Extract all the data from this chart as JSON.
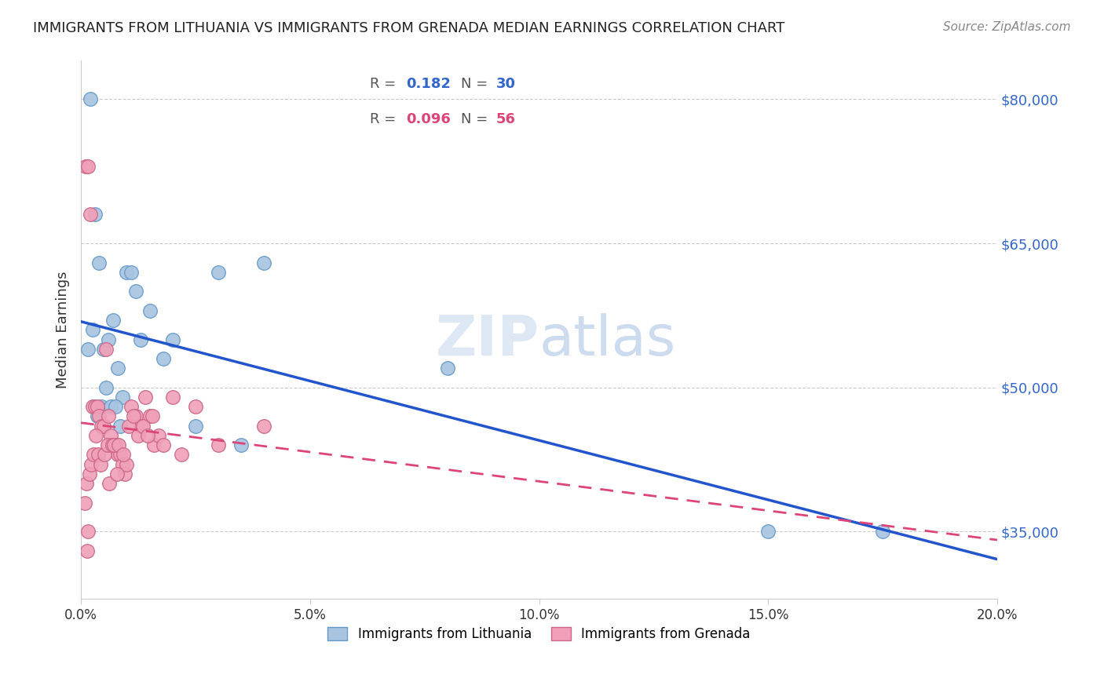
{
  "title": "IMMIGRANTS FROM LITHUANIA VS IMMIGRANTS FROM GRENADA MEDIAN EARNINGS CORRELATION CHART",
  "source": "Source: ZipAtlas.com",
  "ylabel": "Median Earnings",
  "xlabel_ticks": [
    "0.0%",
    "5.0%",
    "10.0%",
    "15.0%",
    "20.0%"
  ],
  "xlabel_vals": [
    0.0,
    5.0,
    10.0,
    15.0,
    20.0
  ],
  "ytick_labels": [
    "$35,000",
    "$50,000",
    "$65,000",
    "$80,000"
  ],
  "ytick_vals": [
    35000,
    50000,
    65000,
    80000
  ],
  "xmin": 0.0,
  "xmax": 20.0,
  "ymin": 28000,
  "ymax": 84000,
  "legend_R_lithuania": "0.182",
  "legend_N_lithuania": "30",
  "legend_R_grenada": "0.096",
  "legend_N_grenada": "56",
  "lithuania_color": "#a8c4e0",
  "grenada_color": "#f0a0b8",
  "lithuania_edge": "#6699cc",
  "grenada_edge": "#cc6688",
  "trend_lithuania_color": "#2255cc",
  "trend_grenada_color": "#dd4477",
  "watermark": "ZIPatlas",
  "lithuania_x": [
    0.5,
    1.0,
    0.2,
    0.3,
    0.4,
    0.6,
    0.7,
    0.8,
    0.9,
    1.2,
    1.5,
    2.0,
    2.5,
    3.0,
    0.15,
    0.25,
    0.35,
    0.45,
    0.55,
    0.65,
    0.75,
    0.85,
    1.1,
    1.3,
    1.8,
    3.5,
    4.0,
    8.0,
    15.0,
    17.5
  ],
  "lithuania_y": [
    54000,
    62000,
    80000,
    68000,
    63000,
    55000,
    57000,
    52000,
    49000,
    60000,
    58000,
    55000,
    46000,
    62000,
    54000,
    56000,
    47000,
    48000,
    50000,
    48000,
    48000,
    46000,
    62000,
    55000,
    53000,
    44000,
    63000,
    52000,
    35000,
    35000
  ],
  "grenada_x": [
    0.1,
    0.15,
    0.2,
    0.25,
    0.3,
    0.35,
    0.4,
    0.45,
    0.5,
    0.55,
    0.6,
    0.65,
    0.7,
    0.75,
    0.8,
    0.85,
    0.9,
    0.95,
    1.0,
    1.1,
    1.2,
    1.3,
    1.4,
    1.5,
    1.6,
    1.7,
    1.8,
    2.0,
    2.2,
    2.5,
    0.12,
    0.18,
    0.22,
    0.28,
    0.38,
    0.42,
    0.52,
    0.58,
    0.68,
    0.72,
    0.82,
    0.92,
    1.05,
    1.15,
    1.25,
    1.35,
    1.45,
    1.55,
    3.0,
    4.0,
    0.08,
    0.13,
    0.16,
    0.32,
    0.62,
    0.78
  ],
  "grenada_y": [
    73000,
    73000,
    68000,
    48000,
    48000,
    48000,
    47000,
    46000,
    46000,
    54000,
    47000,
    45000,
    44000,
    44000,
    43000,
    43000,
    42000,
    41000,
    42000,
    48000,
    47000,
    46000,
    49000,
    47000,
    44000,
    45000,
    44000,
    49000,
    43000,
    48000,
    40000,
    41000,
    42000,
    43000,
    43000,
    42000,
    43000,
    44000,
    44000,
    44000,
    44000,
    43000,
    46000,
    47000,
    45000,
    46000,
    45000,
    47000,
    44000,
    46000,
    38000,
    33000,
    35000,
    45000,
    40000,
    41000
  ]
}
